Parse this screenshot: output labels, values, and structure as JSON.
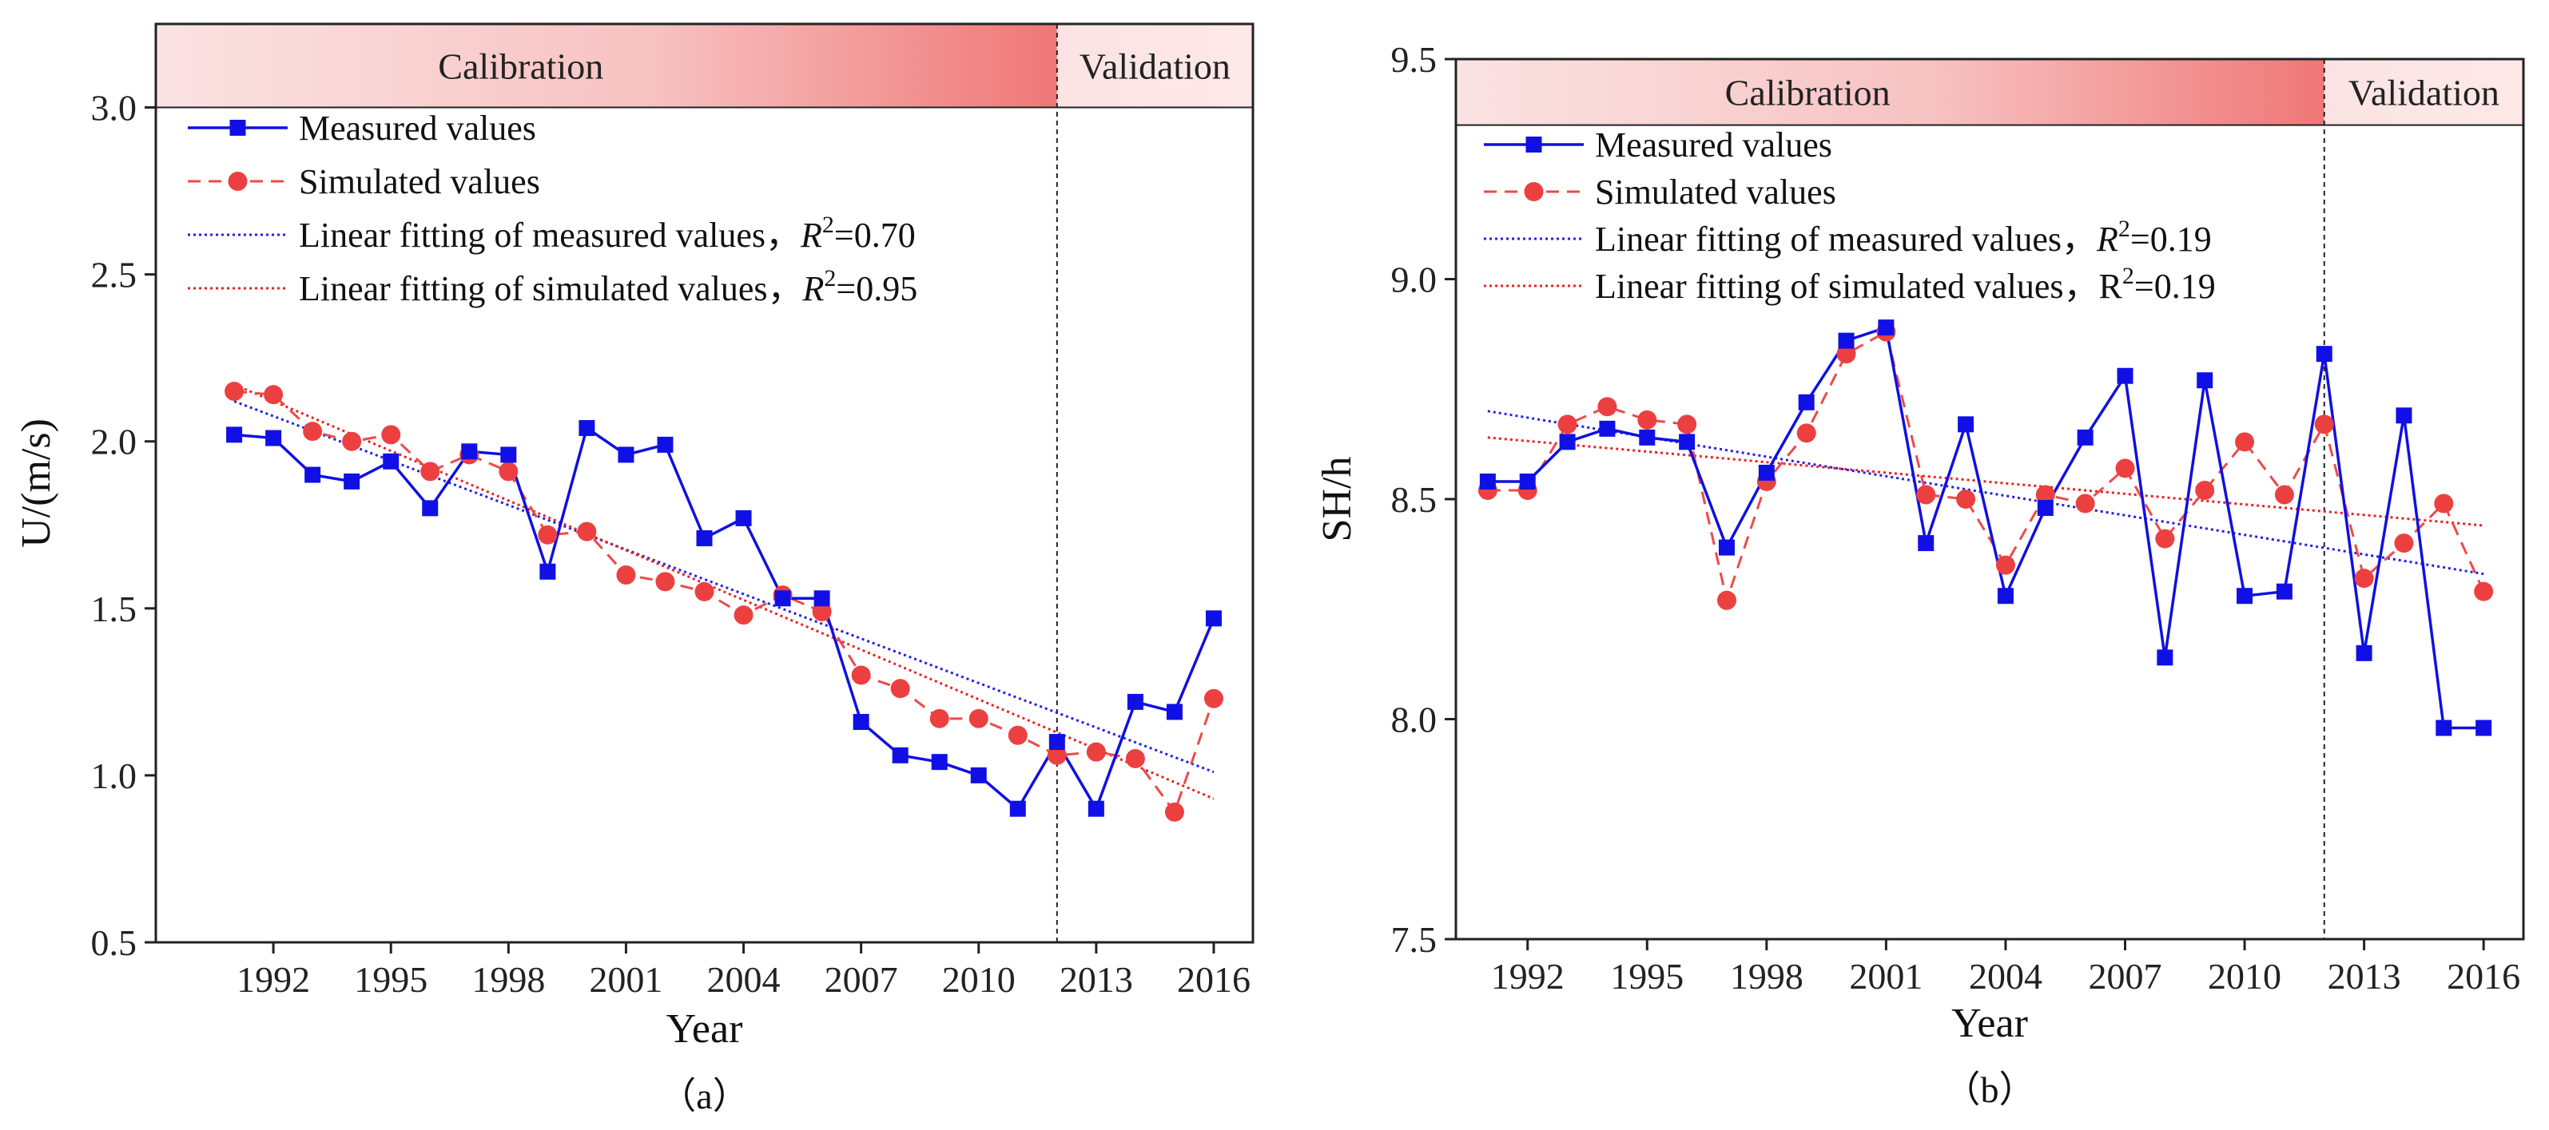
{
  "chart_data": [
    {
      "type": "line",
      "caption": "（a）",
      "xlabel": "Year",
      "ylabel": "U/(m/s)",
      "xlim": [
        1989.0,
        2017.0
      ],
      "ylim": [
        0.5,
        3.25
      ],
      "x_ticks": [
        1992,
        1995,
        1998,
        2001,
        2004,
        2007,
        2010,
        2013,
        2016
      ],
      "y_ticks": [
        "0.5",
        "1.0",
        "1.5",
        "2.0",
        "2.5",
        "3.0"
      ],
      "band_top": 3.25,
      "band_bottom": 3.0,
      "split_year": 2012,
      "band_labels": {
        "calibration": "Calibration",
        "validation": "Validation"
      },
      "legend": {
        "measured": "Measured values",
        "simulated": "Simulated values",
        "fit_measured_prefix": "Linear fitting of measured values，",
        "fit_measured_r2": "0.70",
        "fit_simulated_prefix": "Linear fitting of simulated values，",
        "fit_simulated_r2": "0.95",
        "fit_simulated_r_italic": true
      },
      "x": [
        1991,
        1992,
        1993,
        1994,
        1995,
        1996,
        1997,
        1998,
        1999,
        2000,
        2001,
        2002,
        2003,
        2004,
        2005,
        2006,
        2007,
        2008,
        2009,
        2010,
        2011,
        2012,
        2013,
        2014,
        2015,
        2016
      ],
      "series": [
        {
          "name": "Measured values",
          "values": [
            2.02,
            2.01,
            1.9,
            1.88,
            1.94,
            1.8,
            1.97,
            1.96,
            1.61,
            2.04,
            1.96,
            1.99,
            1.71,
            1.77,
            1.53,
            1.53,
            1.16,
            1.06,
            1.04,
            1.0,
            0.9,
            1.1,
            0.9,
            1.22,
            1.19,
            1.47
          ]
        },
        {
          "name": "Simulated values",
          "values": [
            2.15,
            2.14,
            2.03,
            2.0,
            2.02,
            1.91,
            1.96,
            1.91,
            1.72,
            1.73,
            1.6,
            1.58,
            1.55,
            1.48,
            1.54,
            1.49,
            1.3,
            1.26,
            1.17,
            1.17,
            1.12,
            1.06,
            1.07,
            1.05,
            0.89,
            1.23
          ]
        }
      ],
      "fits": {
        "measured": {
          "x": [
            1991,
            2016
          ],
          "y": [
            2.12,
            1.01
          ]
        },
        "simulated": {
          "x": [
            1991,
            2016
          ],
          "y": [
            2.17,
            0.93
          ]
        }
      }
    },
    {
      "type": "line",
      "caption": "（b）",
      "xlabel": "Year",
      "ylabel": "SH/h",
      "xlim": [
        1990.2,
        2017.0
      ],
      "ylim": [
        7.5,
        9.5
      ],
      "x_ticks": [
        1992,
        1995,
        1998,
        2001,
        2004,
        2007,
        2010,
        2013,
        2016
      ],
      "y_ticks": [
        "7.5",
        "8.0",
        "8.5",
        "9.0",
        "9.5"
      ],
      "band_top": 9.5,
      "band_bottom": 9.35,
      "split_year": 2012,
      "band_labels": {
        "calibration": "Calibration",
        "validation": "Validation"
      },
      "legend": {
        "measured": "Measured values",
        "simulated": "Simulated values",
        "fit_measured_prefix": "Linear fitting of measured values，",
        "fit_measured_r2": "0.19",
        "fit_simulated_prefix": "Linear fitting of simulated values，",
        "fit_simulated_r2": "0.19",
        "fit_simulated_r_italic": false
      },
      "x": [
        1991,
        1992,
        1993,
        1994,
        1995,
        1996,
        1997,
        1998,
        1999,
        2000,
        2001,
        2002,
        2003,
        2004,
        2005,
        2006,
        2007,
        2008,
        2009,
        2010,
        2011,
        2012,
        2013,
        2014,
        2015,
        2016
      ],
      "series": [
        {
          "name": "Measured values",
          "values": [
            8.54,
            8.54,
            8.63,
            8.66,
            8.64,
            8.63,
            8.39,
            8.56,
            8.72,
            8.86,
            8.89,
            8.4,
            8.67,
            8.28,
            8.48,
            8.64,
            8.78,
            8.14,
            8.77,
            8.28,
            8.29,
            8.83,
            8.15,
            8.69,
            7.98,
            7.98
          ]
        },
        {
          "name": "Simulated values",
          "values": [
            8.52,
            8.52,
            8.67,
            8.71,
            8.68,
            8.67,
            8.27,
            8.54,
            8.65,
            8.83,
            8.88,
            8.51,
            8.5,
            8.35,
            8.51,
            8.49,
            8.57,
            8.41,
            8.52,
            8.63,
            8.51,
            8.67,
            8.32,
            8.4,
            8.49,
            8.29
          ]
        }
      ],
      "fits": {
        "measured": {
          "x": [
            1991,
            2016
          ],
          "y": [
            8.7,
            8.33
          ]
        },
        "simulated": {
          "x": [
            1991,
            2016
          ],
          "y": [
            8.64,
            8.44
          ]
        }
      }
    }
  ]
}
